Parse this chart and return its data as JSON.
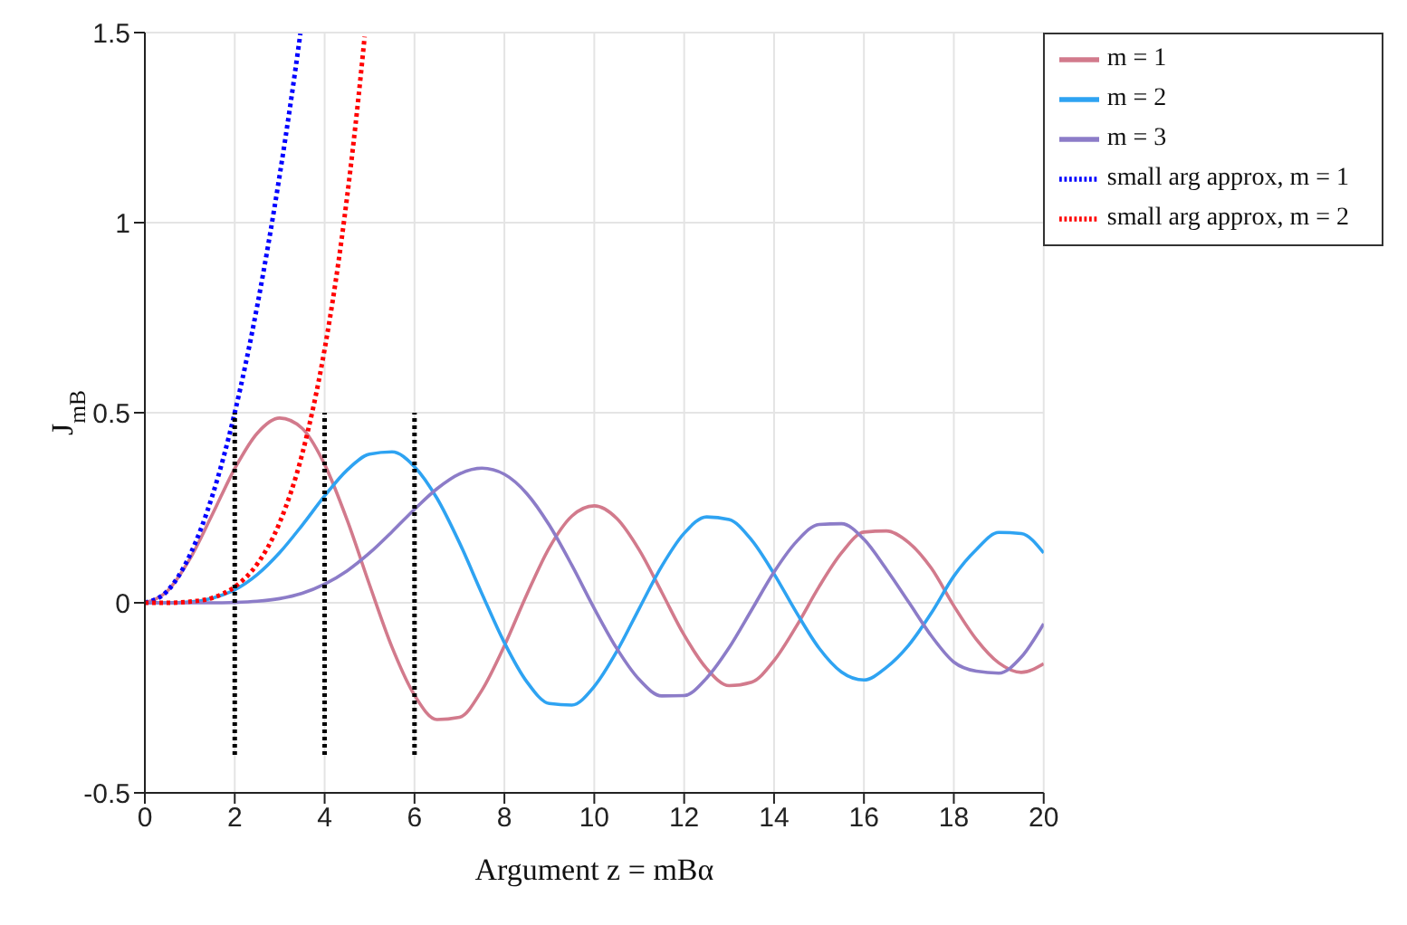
{
  "chart_data": {
    "type": "line",
    "xlabel": "Argument z = mBα",
    "ylabel": "J$_{mB}$",
    "x": [
      0,
      0.5,
      1,
      1.5,
      2,
      2.5,
      3,
      3.5,
      4,
      4.5,
      5,
      5.5,
      6,
      6.5,
      7,
      7.5,
      8,
      8.5,
      9,
      9.5,
      10,
      10.5,
      11,
      11.5,
      12,
      12.5,
      13,
      13.5,
      14,
      14.5,
      15,
      15.5,
      16,
      16.5,
      17,
      17.5,
      18,
      18.5,
      19,
      19.5,
      20
    ],
    "series": [
      {
        "name": "m = 1",
        "color": "#d27a8c",
        "line_style": "solid",
        "values": [
          0,
          0.031,
          0.115,
          0.232,
          0.353,
          0.446,
          0.486,
          0.459,
          0.364,
          0.218,
          0.047,
          -0.117,
          -0.243,
          -0.307,
          -0.301,
          -0.23,
          -0.113,
          0.022,
          0.145,
          0.228,
          0.255,
          0.222,
          0.139,
          0.028,
          -0.085,
          -0.173,
          -0.218,
          -0.209,
          -0.152,
          -0.061,
          0.042,
          0.131,
          0.186,
          0.189,
          0.158,
          0.091,
          -0.008,
          -0.096,
          -0.158,
          -0.183,
          -0.16
        ]
      },
      {
        "name": "m = 2",
        "color": "#2ea3f2",
        "line_style": "solid",
        "values": [
          0,
          0,
          0.002,
          0.012,
          0.034,
          0.074,
          0.132,
          0.204,
          0.281,
          0.349,
          0.391,
          0.397,
          0.358,
          0.275,
          0.158,
          0.024,
          -0.105,
          -0.208,
          -0.265,
          -0.269,
          -0.22,
          -0.128,
          -0.015,
          0.096,
          0.183,
          0.226,
          0.219,
          0.165,
          0.076,
          -0.026,
          -0.119,
          -0.182,
          -0.203,
          -0.17,
          -0.111,
          -0.027,
          0.07,
          0.14,
          0.185,
          0.182,
          0.131
        ]
      },
      {
        "name": "m = 3",
        "color": "#8c7cc8",
        "line_style": "solid",
        "values": [
          0,
          0,
          0,
          0,
          0.001,
          0.004,
          0.011,
          0.025,
          0.049,
          0.084,
          0.131,
          0.187,
          0.246,
          0.3,
          0.339,
          0.354,
          0.338,
          0.287,
          0.204,
          0.099,
          -0.015,
          -0.12,
          -0.202,
          -0.245,
          -0.244,
          -0.198,
          -0.118,
          -0.019,
          0.081,
          0.161,
          0.206,
          0.208,
          0.167,
          0.088,
          0.001,
          -0.087,
          -0.156,
          -0.18,
          -0.185,
          -0.143,
          -0.055
        ]
      },
      {
        "name": "small arg approx, m = 1",
        "color": "#0000ff",
        "line_style": "dotted",
        "x": [
          0,
          0.5,
          1,
          1.5,
          2,
          2.5,
          3,
          3.25,
          3.46
        ],
        "values": [
          0,
          0.031,
          0.125,
          0.281,
          0.5,
          0.781,
          1.125,
          1.32,
          1.497
        ]
      },
      {
        "name": "small arg approx, m = 2",
        "color": "#ff0000",
        "line_style": "dotted",
        "x": [
          0,
          0.5,
          1,
          1.5,
          2,
          2.5,
          3,
          3.5,
          4,
          4.25,
          4.5,
          4.75,
          4.89
        ],
        "values": [
          0,
          0,
          0.003,
          0.013,
          0.042,
          0.102,
          0.211,
          0.391,
          0.667,
          0.849,
          1.068,
          1.326,
          1.489
        ]
      },
      {
        "color": "#000000",
        "line_style": "dotted",
        "x": [
          2,
          2
        ],
        "values": [
          -0.4,
          0.5
        ]
      },
      {
        "color": "#000000",
        "line_style": "dotted",
        "x": [
          4,
          4
        ],
        "values": [
          -0.4,
          0.5
        ]
      },
      {
        "color": "#000000",
        "line_style": "dotted",
        "x": [
          6,
          6
        ],
        "values": [
          -0.4,
          0.5
        ]
      }
    ],
    "xlim": [
      0,
      20
    ],
    "xticks": [
      0,
      2,
      4,
      6,
      8,
      10,
      12,
      14,
      16,
      18,
      20
    ],
    "ylim": [
      -0.5,
      1.5
    ],
    "yticks": [
      -0.5,
      0,
      0.5,
      1,
      1.5
    ],
    "grid": true,
    "legend": "top right"
  }
}
